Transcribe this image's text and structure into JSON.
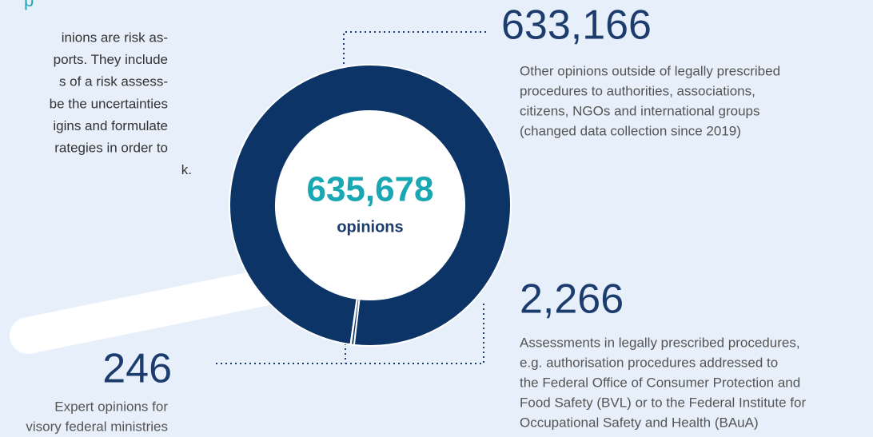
{
  "intro": {
    "heading": "p",
    "lines": [
      "inions are risk as-",
      "ports. They include",
      "s of a risk assess-",
      "be the uncertainties",
      "igins and formulate",
      "rategies in order to",
      "k."
    ]
  },
  "chart_data": {
    "type": "donut",
    "total": 635678,
    "total_label": "635,678",
    "center_label": "opinions",
    "color": "#0c3466",
    "segments": [
      {
        "value": 633166,
        "value_label": "633,166",
        "description": [
          "Other opinions outside of legally prescribed",
          "procedures to authorities, associations,",
          "citizens, NGOs and international groups",
          "(changed data collection since 2019)"
        ]
      },
      {
        "value": 2266,
        "value_label": "2,266",
        "description": [
          "Assessments in legally prescribed procedures,",
          "e.g. authorisation procedures addressed to",
          "the Federal Office of Consumer Protection and",
          "Food Safety (BVL) or to the Federal Institute for",
          "Occupational Safety and Health (BAuA)"
        ]
      },
      {
        "value": 246,
        "value_label": "246",
        "description": [
          "Expert opinions for",
          "visory federal ministries"
        ]
      }
    ]
  }
}
